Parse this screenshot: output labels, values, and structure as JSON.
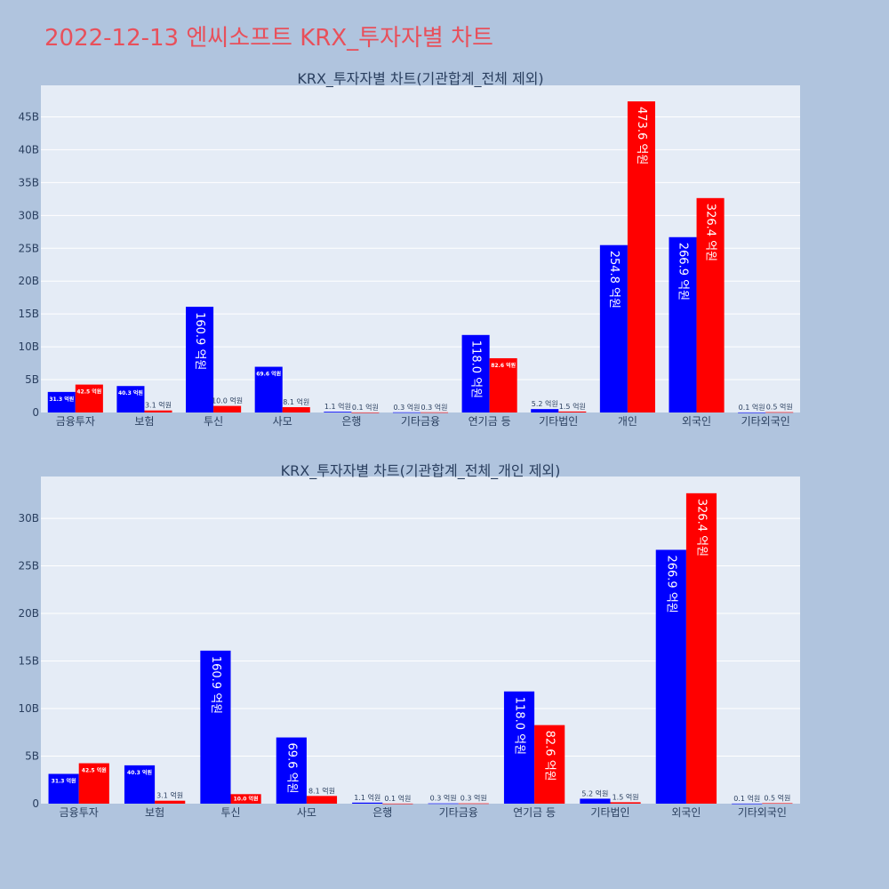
{
  "page_title": "2022-12-13 엔씨소프트 KRX_투자자별 차트",
  "colors": {
    "buy": "#0000ff",
    "sell": "#ff0000",
    "plot_bg": "#e5ecf6",
    "page_bg": "#b0c4de",
    "title": "#e8505b"
  },
  "chart_data": [
    {
      "type": "bar",
      "title": "KRX_투자자별 차트(기관합계_전체 제외)",
      "categories": [
        "금융투자",
        "보험",
        "투신",
        "사모",
        "은행",
        "기타금융",
        "연기금 등",
        "기타법인",
        "개인",
        "외국인",
        "기타외국인"
      ],
      "series": [
        {
          "values": [
            3.13,
            4.03,
            16.09,
            6.96,
            0.11,
            0.03,
            11.8,
            0.52,
            25.48,
            26.69,
            0.01
          ],
          "labels": [
            "31.3 억원",
            "40.3 억원",
            "160.9 억원",
            "69.6 억원",
            "1.1 억원",
            "0.3 억원",
            "118.0 억원",
            "5.2 억원",
            "254.8 억원",
            "266.9 억원",
            "0.1 억원"
          ]
        },
        {
          "values": [
            4.25,
            0.31,
            1.0,
            0.81,
            0.01,
            0.03,
            8.26,
            0.15,
            47.36,
            32.64,
            0.05
          ],
          "labels": [
            "42.5 억원",
            "3.1 억원",
            "10.0 억원",
            "8.1 억원",
            "0.1 억원",
            "0.3 억원",
            "82.6 억원",
            "1.5 억원",
            "473.6 억원",
            "326.4 억원",
            "0.5 억원"
          ]
        }
      ],
      "yticks": [
        0,
        5,
        10,
        15,
        20,
        25,
        30,
        35,
        40,
        45
      ],
      "ytick_labels": [
        "0",
        "5B",
        "10B",
        "15B",
        "20B",
        "25B",
        "30B",
        "35B",
        "40B",
        "45B"
      ],
      "ylim": [
        0,
        49.8
      ],
      "grid": true
    },
    {
      "type": "bar",
      "title": "KRX_투자자별 차트(기관합계_전체_개인 제외)",
      "categories": [
        "금융투자",
        "보험",
        "투신",
        "사모",
        "은행",
        "기타금융",
        "연기금 등",
        "기타법인",
        "외국인",
        "기타외국인"
      ],
      "series": [
        {
          "values": [
            3.13,
            4.03,
            16.09,
            6.96,
            0.11,
            0.03,
            11.8,
            0.52,
            26.69,
            0.01
          ],
          "labels": [
            "31.3 억원",
            "40.3 억원",
            "160.9 억원",
            "69.6 억원",
            "1.1 억원",
            "0.3 억원",
            "118.0 억원",
            "5.2 억원",
            "266.9 억원",
            "0.1 억원"
          ]
        },
        {
          "values": [
            4.25,
            0.31,
            1.0,
            0.81,
            0.01,
            0.03,
            8.26,
            0.15,
            32.64,
            0.05
          ],
          "labels": [
            "42.5 억원",
            "3.1 억원",
            "10.0 억원",
            "8.1 억원",
            "0.1 억원",
            "0.3 억원",
            "82.6 억원",
            "1.5 억원",
            "326.4 억원",
            "0.5 억원"
          ]
        }
      ],
      "yticks": [
        0,
        5,
        10,
        15,
        20,
        25,
        30
      ],
      "ytick_labels": [
        "0",
        "5B",
        "10B",
        "15B",
        "20B",
        "25B",
        "30B"
      ],
      "ylim": [
        0,
        34.4
      ],
      "grid": true
    }
  ]
}
